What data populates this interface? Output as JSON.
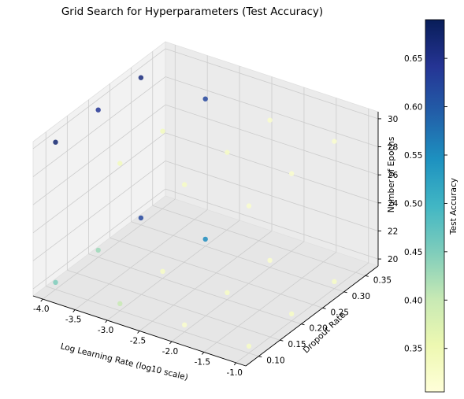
{
  "chart_data": {
    "type": "scatter",
    "projection": "3d",
    "title": "Grid Search for Hyperparameters (Test Accuracy)",
    "xlabel": "Log Learning Rate (log10 scale)",
    "ylabel": "Dropout Rate",
    "zlabel": "Number of Epochs",
    "colorbar_label": "Test Accuracy",
    "colormap": "YlGnBu",
    "xlim": [
      -4.15,
      -0.85
    ],
    "ylim": [
      0.07,
      0.38
    ],
    "zlim": [
      19.5,
      30.5
    ],
    "clim": [
      0.305,
      0.69
    ],
    "x_ticks": [
      "-4.0",
      "-3.5",
      "-3.0",
      "-2.5",
      "-2.0",
      "-1.5",
      "-1.0"
    ],
    "y_ticks": [
      "0.10",
      "0.15",
      "0.20",
      "0.25",
      "0.30",
      "0.35"
    ],
    "z_ticks": [
      "20",
      "22",
      "24",
      "26",
      "28",
      "30"
    ],
    "colorbar_ticks": [
      "0.35",
      "0.40",
      "0.45",
      "0.50",
      "0.55",
      "0.60",
      "0.65"
    ],
    "grid": true,
    "points": [
      {
        "x": -4.0,
        "y": 0.1,
        "z": 20,
        "acc": 0.45
      },
      {
        "x": -4.0,
        "y": 0.1,
        "z": 30,
        "acc": 0.67
      },
      {
        "x": -4.0,
        "y": 0.3,
        "z": 20,
        "acc": 0.62
      },
      {
        "x": -4.0,
        "y": 0.3,
        "z": 30,
        "acc": 0.66
      },
      {
        "x": -3.0,
        "y": 0.1,
        "z": 20,
        "acc": 0.4
      },
      {
        "x": -3.0,
        "y": 0.1,
        "z": 30,
        "acc": 0.34
      },
      {
        "x": -3.0,
        "y": 0.3,
        "z": 20,
        "acc": 0.55
      },
      {
        "x": -3.0,
        "y": 0.3,
        "z": 30,
        "acc": 0.62
      },
      {
        "x": -3.0,
        "y": 0.2,
        "z": 20,
        "acc": 0.33
      },
      {
        "x": -3.0,
        "y": 0.2,
        "z": 30,
        "acc": 0.34
      },
      {
        "x": -4.0,
        "y": 0.2,
        "z": 20,
        "acc": 0.43
      },
      {
        "x": -4.0,
        "y": 0.2,
        "z": 30,
        "acc": 0.64
      },
      {
        "x": -2.0,
        "y": 0.1,
        "z": 20,
        "acc": 0.32
      },
      {
        "x": -2.0,
        "y": 0.1,
        "z": 30,
        "acc": 0.33
      },
      {
        "x": -2.0,
        "y": 0.2,
        "z": 20,
        "acc": 0.33
      },
      {
        "x": -2.0,
        "y": 0.2,
        "z": 30,
        "acc": 0.33
      },
      {
        "x": -2.0,
        "y": 0.3,
        "z": 20,
        "acc": 0.32
      },
      {
        "x": -2.0,
        "y": 0.3,
        "z": 30,
        "acc": 0.32
      },
      {
        "x": -1.0,
        "y": 0.1,
        "z": 20,
        "acc": 0.33
      },
      {
        "x": -1.0,
        "y": 0.1,
        "z": 30,
        "acc": 0.32
      },
      {
        "x": -1.0,
        "y": 0.2,
        "z": 20,
        "acc": 0.33
      },
      {
        "x": -1.0,
        "y": 0.2,
        "z": 30,
        "acc": 0.32
      },
      {
        "x": -1.0,
        "y": 0.3,
        "z": 20,
        "acc": 0.33
      },
      {
        "x": -1.0,
        "y": 0.3,
        "z": 30,
        "acc": 0.32
      }
    ]
  }
}
